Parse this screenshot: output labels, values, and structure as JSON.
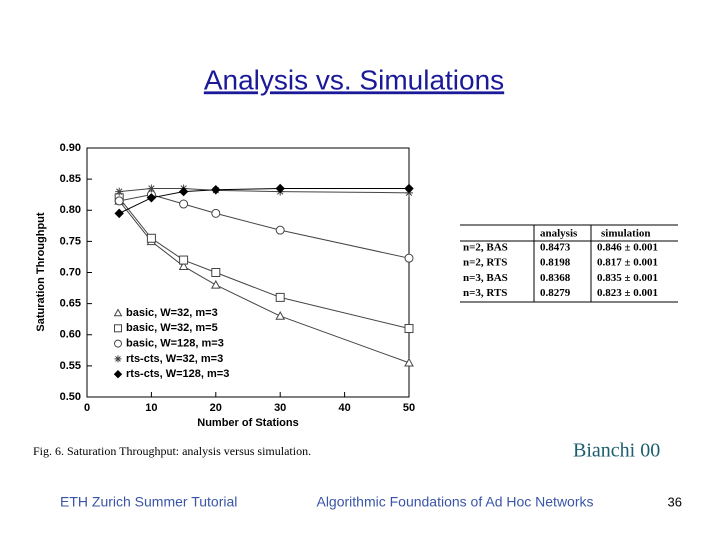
{
  "slide_title": "Analysis vs. Simulations",
  "chart_data": {
    "type": "line",
    "xlabel": "Number of Stations",
    "ylabel": "Saturation Throughput",
    "x": [
      5,
      10,
      15,
      20,
      30,
      50
    ],
    "xlim": [
      0,
      50
    ],
    "xticks": [
      0,
      10,
      20,
      30,
      40,
      50
    ],
    "ylim": [
      0.5,
      0.9
    ],
    "yticks": [
      {
        "value": 0.5,
        "label": "0.50"
      },
      0.55,
      {
        "value": 0.6,
        "label": "0.60"
      },
      0.65,
      {
        "value": 0.7,
        "label": "0.70"
      },
      0.75,
      {
        "value": 0.8,
        "label": "0.80"
      },
      0.85,
      {
        "value": 0.9,
        "label": "0.90"
      }
    ],
    "series": [
      {
        "name": "basic, W=32, m=3",
        "color": "#444444",
        "marker": "triangle",
        "values": [
          0.815,
          0.75,
          0.71,
          0.68,
          0.63,
          0.555
        ]
      },
      {
        "name": "basic, W=32, m=5",
        "color": "#444444",
        "marker": "square",
        "values": [
          0.82,
          0.755,
          0.72,
          0.7,
          0.66,
          0.61
        ]
      },
      {
        "name": "basic, W=128, m=3",
        "color": "#444444",
        "marker": "circle",
        "values": [
          0.815,
          0.825,
          0.81,
          0.795,
          0.768,
          0.723
        ]
      },
      {
        "name": "rts-cts, W=32, m=3",
        "color": "#444444",
        "marker": "star",
        "values": [
          0.83,
          0.835,
          0.835,
          0.832,
          0.83,
          0.828
        ]
      },
      {
        "name": "rts-cts, W=128, m=3",
        "color": "#000000",
        "marker": "diamond",
        "values": [
          0.795,
          0.82,
          0.83,
          0.833,
          0.835,
          0.835
        ]
      }
    ],
    "caption": "Fig. 6.   Saturation Throughput: analysis versus simulation."
  },
  "table": {
    "header": [
      "analysis",
      "simulation"
    ],
    "rows": [
      [
        "n=2,  BAS",
        "0.8473",
        "0.846 ± 0.001"
      ],
      [
        "n=2,  RTS",
        "0.8198",
        "0.817 ± 0.001"
      ],
      [
        "n=3,  BAS",
        "0.8368",
        "0.835 ± 0.001"
      ],
      [
        "n=3,  RTS",
        "0.8279",
        "0.823 ± 0.001"
      ]
    ]
  },
  "citation": "Bianchi 00",
  "footer": {
    "left": "ETH Zurich Summer Tutorial",
    "center": "Algorithmic Foundations of Ad Hoc Networks",
    "page": "36"
  }
}
